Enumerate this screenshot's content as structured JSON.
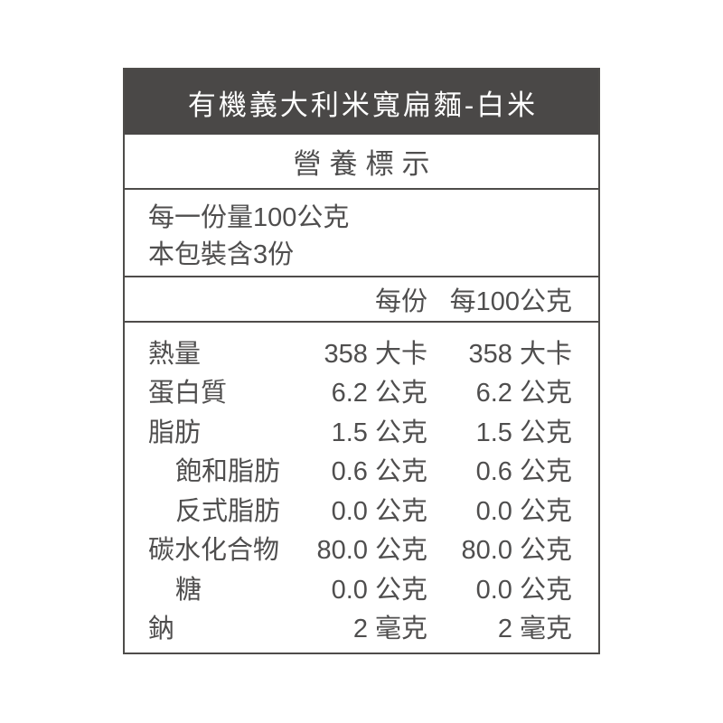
{
  "product": {
    "title": "有機義大利米寬扁麵-白米"
  },
  "label": {
    "title": "營養標示",
    "serving_size_line": "每一份量100公克",
    "servings_per_package_line": "本包裝含3份",
    "columns": {
      "per_serving": "每份",
      "per_100g": "每100公克"
    },
    "rows": [
      {
        "name": "熱量",
        "indent": false,
        "per_serving": "358 大卡",
        "per_100g": "358 大卡"
      },
      {
        "name": "蛋白質",
        "indent": false,
        "per_serving": "6.2 公克",
        "per_100g": "6.2 公克"
      },
      {
        "name": "脂肪",
        "indent": false,
        "per_serving": "1.5 公克",
        "per_100g": "1.5 公克"
      },
      {
        "name": "飽和脂肪",
        "indent": true,
        "per_serving": "0.6 公克",
        "per_100g": "0.6 公克"
      },
      {
        "name": "反式脂肪",
        "indent": true,
        "per_serving": "0.0 公克",
        "per_100g": "0.0 公克"
      },
      {
        "name": "碳水化合物",
        "indent": false,
        "per_serving": "80.0 公克",
        "per_100g": "80.0 公克"
      },
      {
        "name": "糖",
        "indent": true,
        "per_serving": "0.0 公克",
        "per_100g": "0.0 公克"
      },
      {
        "name": "鈉",
        "indent": false,
        "per_serving": "2 毫克",
        "per_100g": "2 毫克"
      }
    ]
  },
  "colors": {
    "header_bg": "#4a4847",
    "header_text": "#ffffff",
    "text": "#4f4e4e",
    "border": "#4e4c4a",
    "page_bg": "#ffffff"
  }
}
